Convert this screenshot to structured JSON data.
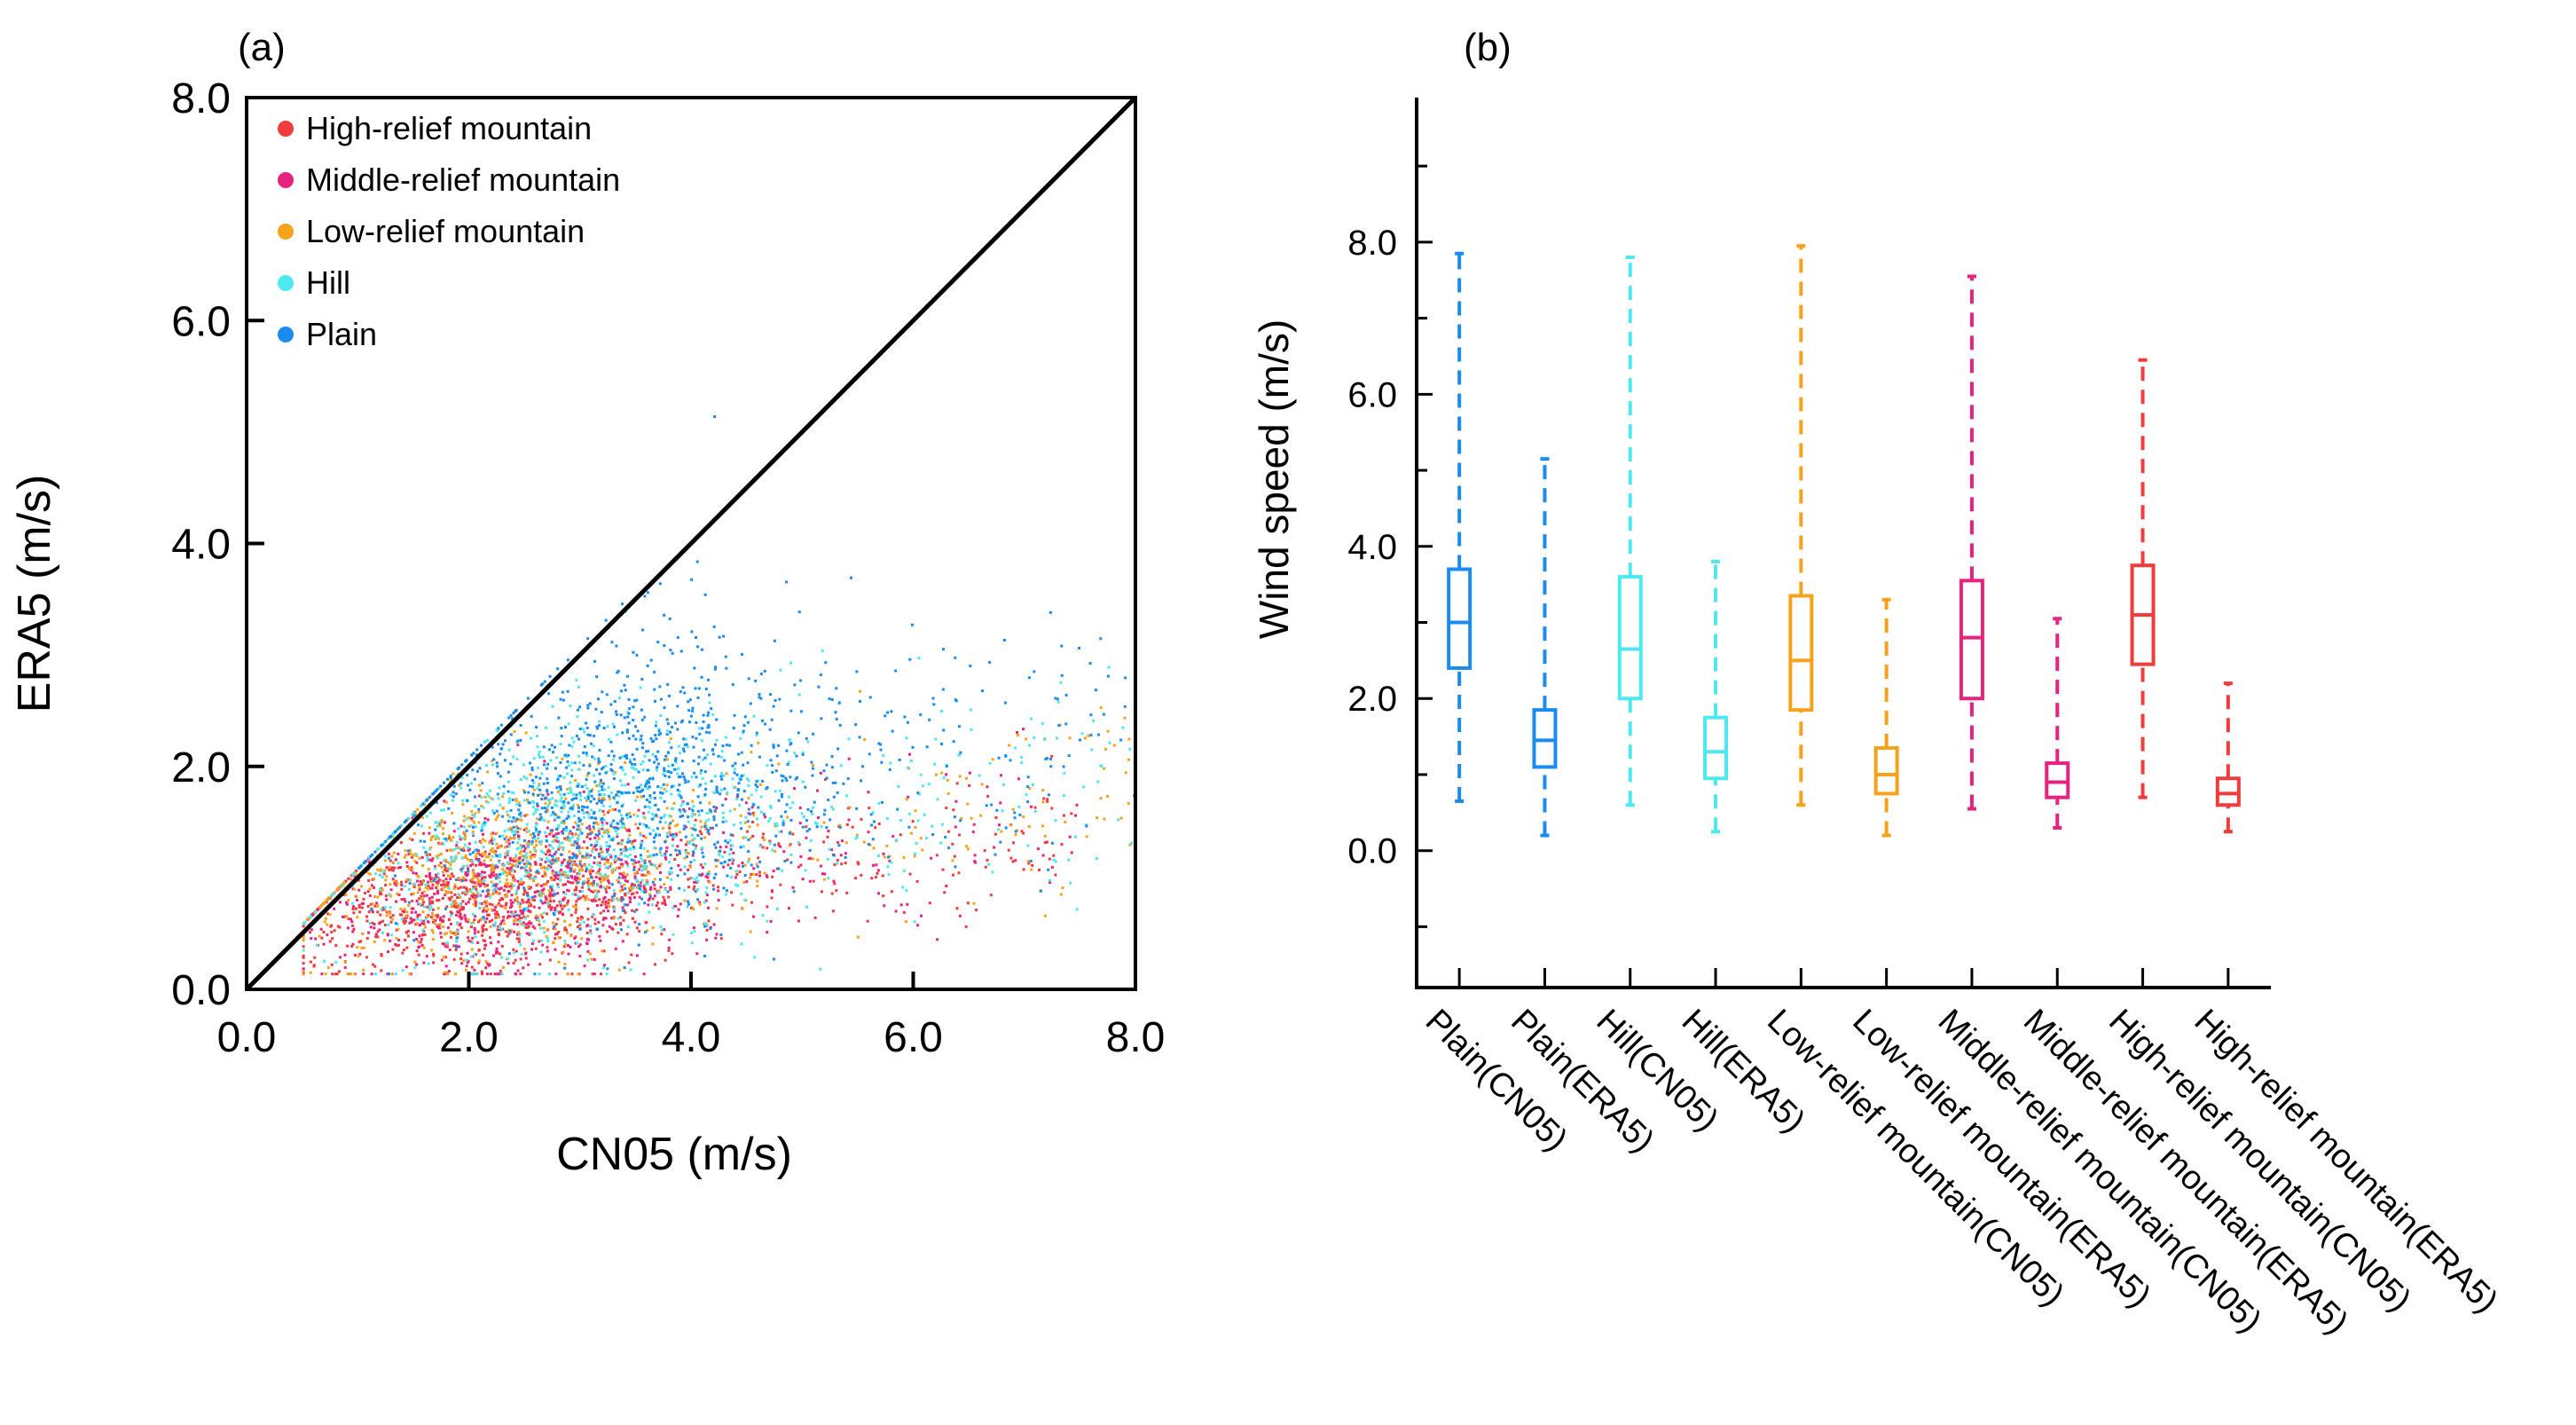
{
  "chart_data": [
    {
      "panel": "(a)",
      "type": "scatter",
      "xlabel": "CN05 (m/s)",
      "ylabel": "ERA5 (m/s)",
      "xlim": [
        0,
        8
      ],
      "ylim": [
        0,
        8
      ],
      "xticks": [
        "0.0",
        "2.0",
        "4.0",
        "6.0",
        "8.0"
      ],
      "yticks": [
        "0.0",
        "2.0",
        "4.0",
        "6.0",
        "8.0"
      ],
      "reference_line": "1:1",
      "legend_position": "top-left",
      "series": [
        {
          "name": "High-relief mountain",
          "color": "#f03c3c",
          "distribution": {
            "x_range": [
              0.5,
              7.5
            ],
            "x_center": 2.2,
            "y_center": 0.8,
            "y_spread": 0.3
          }
        },
        {
          "name": "Middle-relief mountain",
          "color": "#e8237f",
          "distribution": {
            "x_range": [
              0.5,
              7.5
            ],
            "x_center": 2.5,
            "y_center": 0.9,
            "y_spread": 0.35
          }
        },
        {
          "name": "Low-relief mountain",
          "color": "#f7a21b",
          "distribution": {
            "x_range": [
              0.5,
              8.0
            ],
            "x_center": 2.3,
            "y_center": 1.1,
            "y_spread": 0.4
          }
        },
        {
          "name": "Hill",
          "color": "#4de8f0",
          "distribution": {
            "x_range": [
              0.5,
              8.0
            ],
            "x_center": 3.0,
            "y_center": 1.4,
            "y_spread": 0.5
          }
        },
        {
          "name": "Plain",
          "color": "#1a8cf0",
          "distribution": {
            "x_range": [
              1.0,
              8.0
            ],
            "x_center": 3.5,
            "y_center": 1.8,
            "y_spread": 0.55
          }
        }
      ],
      "annotations": [
        {
          "x": 4.2,
          "y": 5.15,
          "note": "isolated Plain point"
        }
      ]
    },
    {
      "panel": "(b)",
      "type": "box",
      "ylabel": "Wind speed (m/s)",
      "ylim": [
        -1.8,
        9.9
      ],
      "yticks": [
        "0.0",
        "2.0",
        "4.0",
        "6.0",
        "8.0"
      ],
      "categories": [
        "Plain(CN05)",
        "Plain(ERA5)",
        "Hill(CN05)",
        "Hill(ERA5)",
        "Low-relief mountain(CN05)",
        "Low-relief mountain(ERA5)",
        "Middle-relief mountain(CN05)",
        "Middle-relief mountain(ERA5)",
        "High-relief mountain(CN05)",
        "High-relief mountain(ERA5)"
      ],
      "boxes": [
        {
          "min": 0.65,
          "q1": 2.4,
          "median": 3.0,
          "q3": 3.7,
          "max": 7.85,
          "color": "#1a8cf0"
        },
        {
          "min": 0.2,
          "q1": 1.1,
          "median": 1.45,
          "q3": 1.85,
          "max": 5.15,
          "color": "#1a8cf0"
        },
        {
          "min": 0.6,
          "q1": 2.0,
          "median": 2.65,
          "q3": 3.6,
          "max": 7.8,
          "color": "#4de8f0"
        },
        {
          "min": 0.25,
          "q1": 0.95,
          "median": 1.3,
          "q3": 1.75,
          "max": 3.8,
          "color": "#4de8f0"
        },
        {
          "min": 0.6,
          "q1": 1.85,
          "median": 2.5,
          "q3": 3.35,
          "max": 7.95,
          "color": "#f7a21b"
        },
        {
          "min": 0.2,
          "q1": 0.75,
          "median": 1.0,
          "q3": 1.35,
          "max": 3.3,
          "color": "#f7a21b"
        },
        {
          "min": 0.55,
          "q1": 2.0,
          "median": 2.8,
          "q3": 3.55,
          "max": 7.55,
          "color": "#e8237f"
        },
        {
          "min": 0.3,
          "q1": 0.7,
          "median": 0.9,
          "q3": 1.15,
          "max": 3.05,
          "color": "#e8237f"
        },
        {
          "min": 0.7,
          "q1": 2.45,
          "median": 3.1,
          "q3": 3.75,
          "max": 6.45,
          "color": "#f03c3c"
        },
        {
          "min": 0.25,
          "q1": 0.6,
          "median": 0.75,
          "q3": 0.95,
          "max": 2.2,
          "color": "#f03c3c"
        }
      ]
    }
  ]
}
